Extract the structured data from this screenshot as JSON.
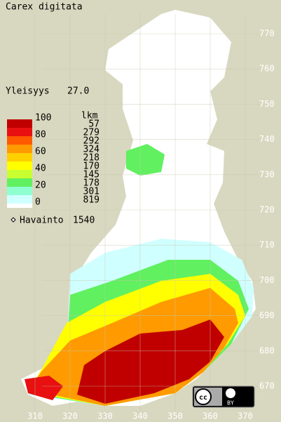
{
  "title": "Carex digitata",
  "frequency": {
    "label": "Yleisyys",
    "value": "27.0"
  },
  "legend": {
    "scale_labels": [
      100,
      80,
      60,
      40,
      20,
      0
    ],
    "count_header": "lkm",
    "counts": [
      57,
      279,
      292,
      324,
      218,
      170,
      145,
      178,
      301,
      819
    ],
    "colors": [
      "#c00000",
      "#e81010",
      "#ff5a00",
      "#ff9a00",
      "#ffd000",
      "#ffff00",
      "#c8ff30",
      "#60f060",
      "#90ffd0",
      "#d0ffff",
      "#ffffff"
    ]
  },
  "observations": {
    "label": "Havainto",
    "value": 1540
  },
  "grid": {
    "northing": [
      770,
      760,
      750,
      740,
      730,
      720,
      710,
      700,
      690,
      680,
      670
    ],
    "easting": [
      310,
      320,
      330,
      340,
      350,
      360,
      370
    ]
  },
  "license": {
    "mark": "cc",
    "type": "BY"
  }
}
